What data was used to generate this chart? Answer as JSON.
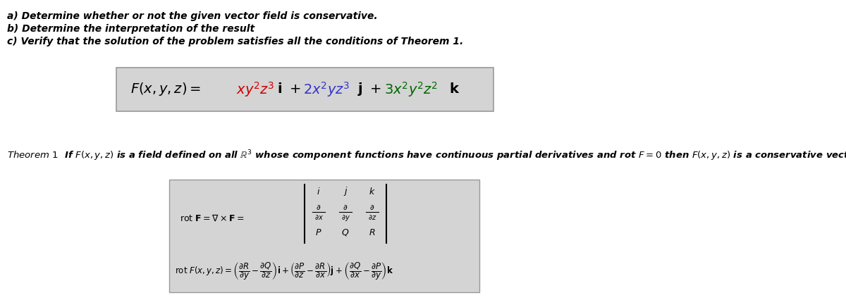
{
  "background_color": "#ffffff",
  "lines_abc": [
    "a) Determine whether or not the given vector field is conservative.",
    "b) Determine the interpretation of the result",
    "c) Verify that the solution of the problem satisfies all the conditions of Theorem 1."
  ],
  "box_bg": "#d4d4d4",
  "text_color": "#000000",
  "red_color": "#cc0000",
  "blue_color": "#3333cc",
  "green_color": "#006600",
  "abc_fontsize": 10,
  "theorem_fontsize": 9.5,
  "formula_fontsize": 14,
  "rot_label_fontsize": 8,
  "rot_formula_fontsize": 7.5
}
